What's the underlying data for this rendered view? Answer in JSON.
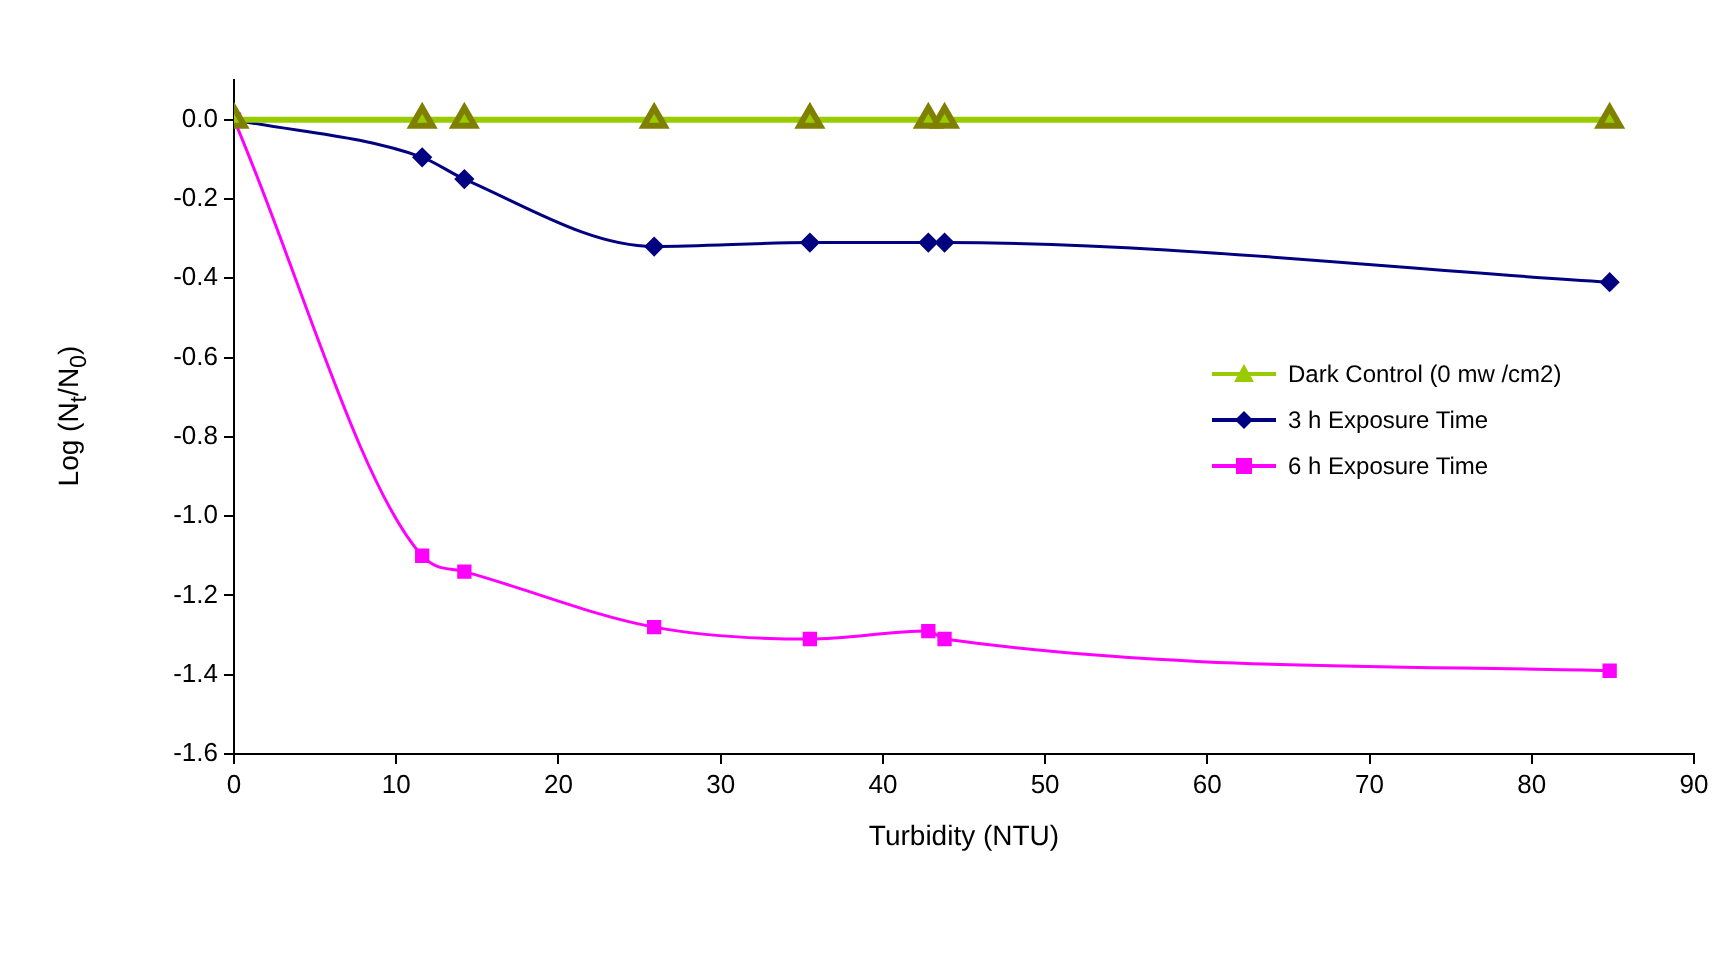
{
  "chart_data": {
    "type": "line",
    "xlabel": "Turbidity (NTU)",
    "ylabel": "Log (N$_{t}$/N$_{0}$)",
    "x": [
      0,
      11.6,
      14.2,
      25.9,
      35.5,
      42.8,
      43.8,
      84.8
    ],
    "series": [
      {
        "name": "Dark Control (0 mw /cm2)",
        "color": "#99cc00",
        "marker": "triangle",
        "values": [
          0,
          0,
          0,
          0,
          0,
          0,
          0,
          0
        ]
      },
      {
        "name": "3 h Exposure Time",
        "color": "#000080",
        "marker": "diamond",
        "values": [
          0,
          -0.095,
          -0.15,
          -0.32,
          -0.31,
          -0.31,
          -0.31,
          -0.41
        ]
      },
      {
        "name": "6 h Exposure Time",
        "color": "#ff00ff",
        "marker": "square",
        "values": [
          0,
          -1.1,
          -1.14,
          -1.28,
          -1.31,
          -1.29,
          -1.31,
          -1.39
        ]
      }
    ],
    "xlim": [
      0,
      90
    ],
    "xticks": [
      0,
      10,
      20,
      30,
      40,
      50,
      60,
      70,
      80,
      90
    ],
    "ylim": [
      -1.6,
      0.1
    ],
    "yticks": [
      {
        "value": -1.6,
        "label": "-1.6"
      },
      {
        "value": -1.4,
        "label": "-1.4"
      },
      {
        "value": -1.2,
        "label": "-1.2"
      },
      {
        "value": -1.0,
        "label": "-1.0"
      },
      {
        "value": -0.8,
        "label": "-0.8"
      },
      {
        "value": -0.6,
        "label": "-0.6"
      },
      {
        "value": -0.4,
        "label": "-0.4"
      },
      {
        "value": -0.2,
        "label": "-0.2"
      },
      {
        "value": 0,
        "label": "0.0"
      }
    ],
    "grid": false,
    "legend": "right"
  }
}
